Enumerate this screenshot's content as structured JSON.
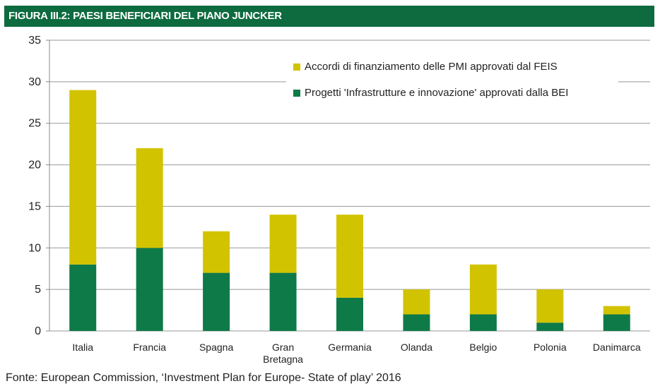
{
  "chart_data": {
    "type": "stacked_bar",
    "title": "FIGURA III.2: PAESI BENEFICIARI DEL PIANO JUNCKER",
    "source": "Fonte: European Commission, ‘Investment Plan for Europe- State of play’ 2016",
    "categories": [
      "Italia",
      "Francia",
      "Spagna",
      "Gran Bretagna",
      "Germania",
      "Olanda",
      "Belgio",
      "Polonia",
      "Danimarca"
    ],
    "series": [
      {
        "name": "Accordi di finanziamento delle PMI approvati dal FEIS",
        "color": "#d2c300",
        "values": [
          21,
          12,
          5,
          7,
          10,
          3,
          6,
          4,
          1
        ]
      },
      {
        "name": "Progetti 'Infrastrutture e innovazione' approvati dalla BEI",
        "color": "#0e7a48",
        "values": [
          8,
          10,
          7,
          7,
          4,
          2,
          2,
          1,
          2
        ]
      }
    ],
    "ylim": [
      0,
      35
    ],
    "yticks": [
      0,
      5,
      10,
      15,
      20,
      25,
      30,
      35
    ],
    "grid": true,
    "legend": "top-right"
  }
}
